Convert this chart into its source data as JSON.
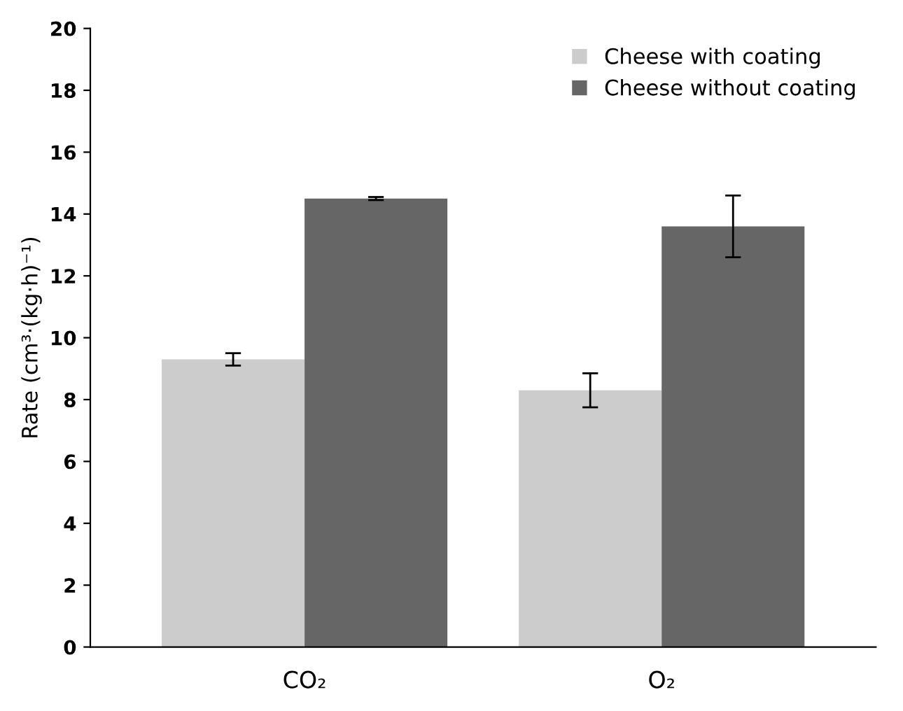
{
  "chart_data": {
    "type": "bar",
    "ylabel": "Rate (cm³·(kg·h)⁻¹)",
    "categories": [
      "CO₂",
      "O₂"
    ],
    "series": [
      {
        "name": "Cheese with coating",
        "color": "#cccccc",
        "values": [
          9.3,
          8.3
        ],
        "errors": [
          0.2,
          0.55
        ]
      },
      {
        "name": "Cheese without coating",
        "color": "#666666",
        "values": [
          14.5,
          13.6
        ],
        "errors": [
          0.05,
          1.0
        ]
      }
    ],
    "ylim": [
      0,
      20
    ],
    "yticks": [
      0,
      2,
      4,
      6,
      8,
      10,
      12,
      14,
      16,
      18,
      20
    ],
    "legend": "top right",
    "grid": false
  }
}
